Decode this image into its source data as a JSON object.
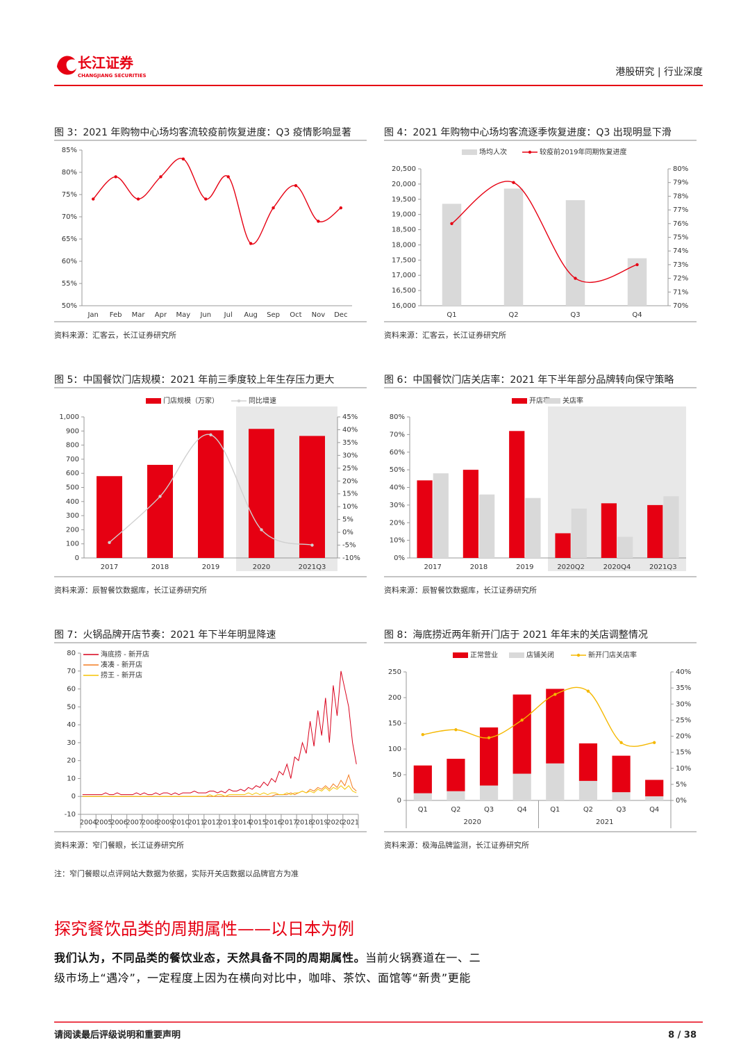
{
  "header": {
    "logo_cn": "长江证券",
    "logo_en": "CHANGJIANG SECURITIES",
    "section": "港股研究 | 行业深度"
  },
  "chart_data": [
    {
      "type": "line",
      "title": "图 3：2021 年购物中心场均客流较疫前恢复进度：Q3 疫情影响显著",
      "source": "资料来源：汇客云，长江证券研究所",
      "categories": [
        "Jan",
        "Feb",
        "Mar",
        "Apr",
        "May",
        "Jun",
        "Jul",
        "Aug",
        "Sep",
        "Oct",
        "Nov",
        "Dec"
      ],
      "series": [
        {
          "color": "#e60012",
          "values": [
            74,
            79,
            74,
            79,
            83,
            74,
            79,
            64,
            72,
            77,
            69,
            72
          ]
        }
      ],
      "smooth": true,
      "markers": true,
      "grid": false,
      "ylim": [
        50,
        85
      ],
      "yticks": [
        {
          "value": 50,
          "label": "50%"
        },
        {
          "value": 55,
          "label": "55%"
        },
        {
          "value": 60,
          "label": "60%"
        },
        {
          "value": 65,
          "label": "65%"
        },
        {
          "value": 70,
          "label": "70%"
        },
        {
          "value": 75,
          "label": "75%"
        },
        {
          "value": 80,
          "label": "80%"
        },
        {
          "value": 85,
          "label": "85%"
        }
      ]
    },
    {
      "type": "combo",
      "title": "图 4：2021 年购物中心场均客流逐季恢复进度：Q3 出现明显下滑",
      "source": "资料来源：汇客云，长江证券研究所",
      "categories": [
        "Q1",
        "Q2",
        "Q3",
        "Q4"
      ],
      "series": [
        {
          "name": "场均人次",
          "type": "bar",
          "color": "#d9d9d9",
          "values": [
            19350,
            19850,
            19470,
            17560
          ]
        },
        {
          "name": "较疫前2019年同期恢复进度",
          "type": "line",
          "axis": "y2",
          "color": "#e60012",
          "values": [
            76,
            79,
            72,
            73
          ]
        }
      ],
      "smooth": true,
      "markers": true,
      "grid": false,
      "ylim": [
        16000,
        20500
      ],
      "yticks": [
        {
          "value": 16000,
          "label": "16,000"
        },
        {
          "value": 16500,
          "label": "16,500"
        },
        {
          "value": 17000,
          "label": "17,000"
        },
        {
          "value": 17500,
          "label": "17,500"
        },
        {
          "value": 18000,
          "label": "18,000"
        },
        {
          "value": 18500,
          "label": "18,500"
        },
        {
          "value": 19000,
          "label": "19,000"
        },
        {
          "value": 19500,
          "label": "19,500"
        },
        {
          "value": 20000,
          "label": "20,000"
        },
        {
          "value": 20500,
          "label": "20,500"
        }
      ],
      "y2lim": [
        70,
        80
      ],
      "y2ticks": [
        {
          "value": 70,
          "label": "70%"
        },
        {
          "value": 71,
          "label": "71%"
        },
        {
          "value": 72,
          "label": "72%"
        },
        {
          "value": 73,
          "label": "73%"
        },
        {
          "value": 74,
          "label": "74%"
        },
        {
          "value": 75,
          "label": "75%"
        },
        {
          "value": 76,
          "label": "76%"
        },
        {
          "value": 77,
          "label": "77%"
        },
        {
          "value": 78,
          "label": "78%"
        },
        {
          "value": 79,
          "label": "79%"
        },
        {
          "value": 80,
          "label": "80%"
        }
      ]
    },
    {
      "type": "combo",
      "title": "图 5：中国餐饮门店规模：2021 年前三季度较上年生存压力更大",
      "source": "资料来源：辰智餐饮数据库，长江证券研究所",
      "categories": [
        "2017",
        "2018",
        "2019",
        "2020",
        "2021Q3"
      ],
      "shaded": [
        3,
        4
      ],
      "series": [
        {
          "name": "门店规模（万家）",
          "type": "bar",
          "color": "#e60012",
          "values": [
            580,
            660,
            905,
            915,
            865
          ]
        },
        {
          "name": "同比增速",
          "type": "line",
          "axis": "y2",
          "color": "#d0d0d0",
          "values": [
            -4,
            14,
            38,
            1,
            -5
          ]
        }
      ],
      "smooth": true,
      "markers": true,
      "grid": false,
      "ylim": [
        0,
        1000
      ],
      "yticks": [
        0,
        100,
        200,
        300,
        400,
        500,
        600,
        700,
        800,
        900,
        {
          "value": 1000,
          "label": "1,000"
        }
      ],
      "y2lim": [
        -10,
        45
      ],
      "y2ticks": [
        {
          "value": -10,
          "label": "-10%"
        },
        {
          "value": -5,
          "label": "-5%"
        },
        {
          "value": 0,
          "label": "0%"
        },
        {
          "value": 5,
          "label": "5%"
        },
        {
          "value": 10,
          "label": "10%"
        },
        {
          "value": 15,
          "label": "15%"
        },
        {
          "value": 20,
          "label": "20%"
        },
        {
          "value": 25,
          "label": "25%"
        },
        {
          "value": 30,
          "label": "30%"
        },
        {
          "value": 35,
          "label": "35%"
        },
        {
          "value": 40,
          "label": "40%"
        },
        {
          "value": 45,
          "label": "45%"
        }
      ]
    },
    {
      "type": "bar",
      "title": "图 6：中国餐饮门店关店率：2021 年下半年部分品牌转向保守策略",
      "source": "资料来源：辰智餐饮数据库，长江证券研究所",
      "categories": [
        "2017",
        "2018",
        "2019",
        "2020Q2",
        "2020Q4",
        "2021Q3"
      ],
      "shaded": [
        3,
        4,
        5
      ],
      "series": [
        {
          "name": "开店率",
          "color": "#e60012",
          "values": [
            44,
            50,
            72,
            14,
            31,
            30
          ]
        },
        {
          "name": "关店率",
          "color": "#d9d9d9",
          "values": [
            48,
            36,
            34,
            28,
            12,
            35
          ]
        }
      ],
      "grid": false,
      "ylim": [
        0,
        80
      ],
      "yticks": [
        {
          "value": 0,
          "label": "0%"
        },
        {
          "value": 10,
          "label": "10%"
        },
        {
          "value": 20,
          "label": "20%"
        },
        {
          "value": 30,
          "label": "30%"
        },
        {
          "value": 40,
          "label": "40%"
        },
        {
          "value": 50,
          "label": "50%"
        },
        {
          "value": 60,
          "label": "60%"
        },
        {
          "value": 70,
          "label": "70%"
        },
        {
          "value": 80,
          "label": "80%"
        }
      ]
    },
    {
      "type": "line",
      "title": "图 7：火锅品牌开店节奏：2021 年下半年明显降速",
      "source": "资料来源：窄门餐眼，长江证券研究所",
      "x": [
        2004.125,
        2004.375,
        2004.625,
        2004.875,
        2005.125,
        2005.375,
        2005.625,
        2005.875,
        2006.125,
        2006.375,
        2006.625,
        2006.875,
        2007.125,
        2007.375,
        2007.625,
        2007.875,
        2008.125,
        2008.375,
        2008.625,
        2008.875,
        2009.125,
        2009.375,
        2009.625,
        2009.875,
        2010.125,
        2010.375,
        2010.625,
        2010.875,
        2011.125,
        2011.375,
        2011.625,
        2011.875,
        2012.125,
        2012.375,
        2012.625,
        2012.875,
        2013.125,
        2013.375,
        2013.625,
        2013.875,
        2014.125,
        2014.375,
        2014.625,
        2014.875,
        2015.125,
        2015.375,
        2015.625,
        2015.875,
        2016.125,
        2016.375,
        2016.625,
        2016.875,
        2017.125,
        2017.375,
        2017.625,
        2017.875,
        2018.125,
        2018.375,
        2018.625,
        2018.875,
        2019.125,
        2019.375,
        2019.625,
        2019.875,
        2020.125,
        2020.375,
        2020.625,
        2020.875,
        2021.125,
        2021.375,
        2021.625,
        2021.875
      ],
      "series": [
        {
          "name": "海底捞 - 新开店",
          "color": "#d9001b",
          "values": [
            1,
            1,
            1,
            1,
            1,
            1,
            2,
            1,
            1,
            2,
            1,
            1,
            1,
            1,
            2,
            1,
            2,
            1,
            1,
            2,
            1,
            2,
            2,
            1,
            2,
            1,
            2,
            2,
            2,
            3,
            2,
            2,
            2,
            3,
            3,
            2,
            3,
            2,
            4,
            3,
            3,
            4,
            3,
            5,
            4,
            6,
            5,
            8,
            6,
            10,
            8,
            14,
            12,
            18,
            10,
            22,
            20,
            30,
            24,
            42,
            28,
            48,
            34,
            55,
            30,
            62,
            45,
            70,
            60,
            50,
            30,
            18
          ]
        },
        {
          "name": "凑凑 - 新开店",
          "color": "#f47c20",
          "values": [
            0,
            0,
            0,
            0,
            0,
            0,
            0,
            0,
            0,
            0,
            0,
            0,
            0,
            0,
            0,
            0,
            0,
            0,
            0,
            0,
            0,
            0,
            0,
            0,
            0,
            0,
            0,
            0,
            0,
            0,
            0,
            0,
            0,
            0,
            0,
            0,
            0,
            0,
            0,
            0,
            0,
            0,
            0,
            0,
            0,
            0,
            0,
            0,
            0,
            0,
            1,
            1,
            1,
            1,
            2,
            1,
            2,
            3,
            2,
            4,
            3,
            5,
            4,
            6,
            4,
            7,
            5,
            9,
            6,
            12,
            5,
            3
          ]
        },
        {
          "name": "捞王 - 新开店",
          "color": "#f5c400",
          "values": [
            0,
            0,
            0,
            0,
            0,
            0,
            0,
            0,
            0,
            0,
            0,
            0,
            0,
            0,
            0,
            0,
            0,
            0,
            0,
            0,
            0,
            0,
            0,
            0,
            0,
            0,
            0,
            0,
            0,
            0,
            0,
            0,
            0,
            1,
            0,
            1,
            1,
            0,
            1,
            1,
            1,
            1,
            1,
            2,
            1,
            2,
            1,
            2,
            1,
            2,
            2,
            1,
            1,
            2,
            1,
            2,
            2,
            3,
            2,
            3,
            2,
            4,
            3,
            5,
            3,
            5,
            4,
            6,
            4,
            6,
            3,
            2
          ]
        }
      ],
      "smooth": false,
      "markers": false,
      "grid": false,
      "xlim": [
        2004,
        2022
      ],
      "xticks": [
        2004,
        2005,
        2006,
        2007,
        2008,
        2009,
        2010,
        2011,
        2012,
        2013,
        2014,
        2015,
        2016,
        2017,
        2018,
        2019,
        2020,
        2021
      ],
      "ylim": [
        -10,
        80
      ],
      "yticks": [
        -10,
        0,
        10,
        20,
        30,
        40,
        50,
        60,
        70,
        80
      ]
    },
    {
      "type": "combo",
      "title": "图 8：海底捞近两年新开门店于 2021 年年末的关店调整情况",
      "source": "资料来源：极海品牌监测，长江证券研究所",
      "categories": [
        "Q1",
        "Q2",
        "Q3",
        "Q4",
        "Q1",
        "Q2",
        "Q3",
        "Q4"
      ],
      "groups": [
        "2020",
        "2021"
      ],
      "stacked": true,
      "series": [
        {
          "name": "正常营业",
          "type": "bar",
          "color": "#e60012",
          "values": [
            54,
            63,
            113,
            154,
            145,
            73,
            71,
            32
          ]
        },
        {
          "name": "店铺关闭",
          "type": "bar",
          "color": "#d9d9d9",
          "values": [
            14,
            18,
            29,
            52,
            72,
            38,
            16,
            8
          ]
        },
        {
          "name": "新开门店关店率",
          "type": "line",
          "axis": "y2",
          "color": "#f5b800",
          "values": [
            20.5,
            22,
            19.5,
            25,
            33,
            34,
            18,
            18
          ]
        }
      ],
      "smooth": true,
      "markers": true,
      "grid": false,
      "ylim": [
        0,
        250
      ],
      "yticks": [
        0,
        50,
        100,
        150,
        200,
        250
      ],
      "y2lim": [
        0,
        40
      ],
      "y2ticks": [
        {
          "value": 0,
          "label": "0%"
        },
        {
          "value": 5,
          "label": "5%"
        },
        {
          "value": 10,
          "label": "10%"
        },
        {
          "value": 15,
          "label": "15%"
        },
        {
          "value": 20,
          "label": "20%"
        },
        {
          "value": 25,
          "label": "25%"
        },
        {
          "value": 30,
          "label": "30%"
        },
        {
          "value": 35,
          "label": "35%"
        },
        {
          "value": 40,
          "label": "40%"
        }
      ]
    }
  ],
  "note": "注：窄门餐眼以点评网站大数据为依据，实际开关店数据以品牌官方为准",
  "section_title": "探究餐饮品类的周期属性——以日本为例",
  "body": {
    "bold": "我们认为，不同品类的餐饮业态，天然具备不同的周期属性。",
    "text": "当前火锅赛道在一、二级市场上“遇冷”，一定程度上因为在横向对比中，咖啡、茶饮、面馆等“新贵”更能"
  },
  "footer": {
    "disclaimer": "请阅读最后评级说明和重要声明",
    "page": "8 / 38"
  }
}
